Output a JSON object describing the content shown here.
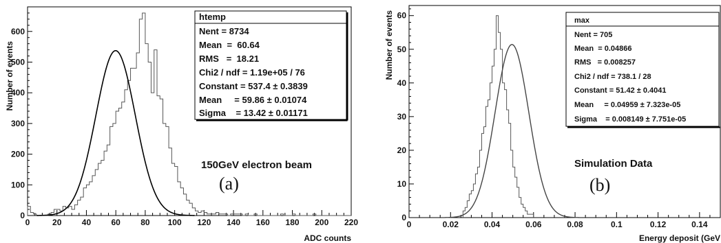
{
  "chart_data": [
    {
      "type": "histogram",
      "panel_label": "(a)",
      "annotation": "150GeV electron beam",
      "xlabel": "ADC counts",
      "ylabel": "Number of events",
      "xlim": [
        0,
        220
      ],
      "ylim": [
        0,
        680
      ],
      "x_ticks": [
        0,
        20,
        40,
        60,
        80,
        100,
        120,
        140,
        160,
        180,
        200,
        220
      ],
      "y_ticks": [
        0,
        100,
        200,
        300,
        400,
        500,
        600
      ],
      "bin_width": 2,
      "bins_start": 0,
      "counts": [
        30,
        10,
        5,
        0,
        0,
        0,
        0,
        5,
        10,
        20,
        20,
        15,
        30,
        25,
        30,
        20,
        35,
        50,
        60,
        90,
        100,
        110,
        130,
        150,
        170,
        180,
        210,
        230,
        290,
        300,
        340,
        350,
        370,
        410,
        440,
        480,
        480,
        530,
        640,
        660,
        560,
        500,
        400,
        540,
        390,
        380,
        300,
        290,
        220,
        170,
        160,
        110,
        90,
        70,
        50,
        40,
        25,
        15,
        10,
        15,
        10,
        5,
        5,
        5,
        10,
        5,
        5,
        5,
        0,
        5,
        5,
        5,
        5,
        0,
        5,
        0,
        0,
        5,
        0,
        0,
        0,
        0,
        0,
        0,
        0,
        0,
        5,
        0,
        0,
        0,
        5,
        0,
        0,
        0,
        0,
        0,
        0,
        5,
        0,
        0,
        0,
        0,
        0,
        0,
        0,
        0,
        0,
        0,
        0,
        0
      ],
      "fit": {
        "function": "gaus",
        "constant": 537.4,
        "mean": 59.86,
        "sigma": 13.42
      },
      "stats_box": [
        "htemp",
        "Nent = 8734",
        "Mean  =  60.64",
        "RMS   =  18.21",
        "Chi2 / ndf = 1.19e+05 / 76",
        "Constant = 537.4 ± 0.3839",
        "Mean     = 59.86 ± 0.01074",
        "Sigma    = 13.42 ± 0.01171"
      ]
    },
    {
      "type": "histogram",
      "panel_label": "(b)",
      "annotation": "Simulation Data",
      "xlabel": "Energy deposit (GeV",
      "ylabel": "Number of events",
      "xlim": [
        0,
        0.15
      ],
      "ylim": [
        0,
        63
      ],
      "x_ticks": [
        0,
        0.02,
        0.04,
        0.06,
        0.08,
        0.1,
        0.12,
        0.14
      ],
      "x_tick_labels": [
        "0",
        "0.02",
        "0.04",
        "0.06",
        "0.08",
        "0.1",
        "0.12",
        "0.14"
      ],
      "y_ticks": [
        0,
        10,
        20,
        30,
        40,
        50,
        60
      ],
      "bin_width": 0.001,
      "bins_start": 0.026,
      "counts": [
        2,
        3,
        5,
        7,
        8,
        10,
        13,
        15,
        20,
        25,
        27,
        33,
        35,
        40,
        45,
        50,
        60,
        55,
        50,
        40,
        38,
        32,
        28,
        20,
        15,
        12,
        9,
        6,
        4,
        3,
        2,
        1,
        1,
        1
      ],
      "fit": {
        "function": "gaus",
        "constant": 51.42,
        "mean": 0.04959,
        "sigma": 0.008149
      },
      "stats_box": [
        "max",
        "Nent = 705",
        "Mean  = 0.04866",
        "RMS   = 0.008257",
        "Chi2 / ndf = 738.1 / 28",
        "Constant = 51.42 ± 0.4041",
        "Mean     = 0.04959 ± 7.323e-05",
        "Sigma    = 0.008149 ± 7.751e-05"
      ]
    }
  ]
}
